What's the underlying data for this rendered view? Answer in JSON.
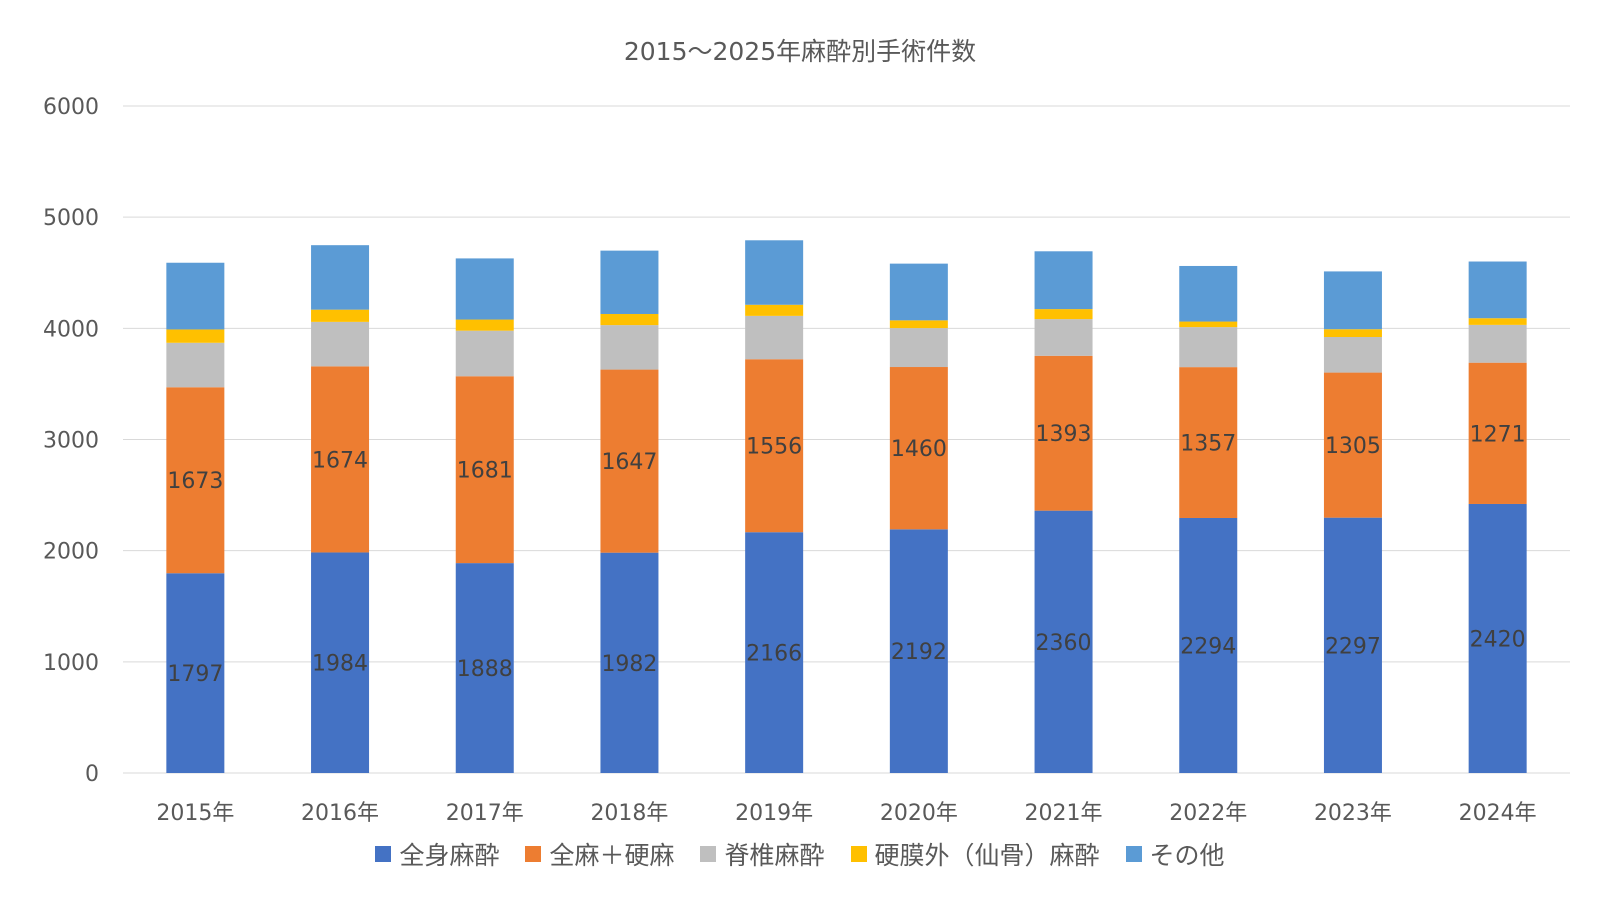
{
  "chart_data": {
    "type": "bar",
    "stacked": true,
    "title": "2015～2025年麻酔別手術件数",
    "xlabel": "",
    "ylabel": "",
    "ylim": [
      0,
      6000
    ],
    "yticks": [
      0,
      1000,
      2000,
      3000,
      4000,
      5000,
      6000
    ],
    "grid": true,
    "legend_position": "bottom",
    "categories": [
      "2015年",
      "2016年",
      "2017年",
      "2018年",
      "2019年",
      "2020年",
      "2021年",
      "2022年",
      "2023年",
      "2024年"
    ],
    "series": [
      {
        "name": "全身麻酔",
        "color": "#4472C4",
        "show_labels": true,
        "values": [
          1797,
          1984,
          1888,
          1982,
          2166,
          2192,
          2360,
          2294,
          2297,
          2420
        ]
      },
      {
        "name": "全麻＋硬麻",
        "color": "#ED7D31",
        "show_labels": true,
        "values": [
          1673,
          1674,
          1681,
          1647,
          1556,
          1460,
          1393,
          1357,
          1305,
          1271
        ]
      },
      {
        "name": "脊椎麻酔",
        "color": "#BFBFBF",
        "show_labels": false,
        "values": [
          400,
          400,
          410,
          400,
          390,
          350,
          330,
          360,
          320,
          340
        ]
      },
      {
        "name": "硬膜外（仙骨）麻酔",
        "color": "#FFC000",
        "show_labels": false,
        "values": [
          120,
          110,
          100,
          100,
          100,
          70,
          90,
          50,
          70,
          60
        ]
      },
      {
        "name": "その他",
        "color": "#5B9BD5",
        "show_labels": false,
        "values": [
          600,
          580,
          550,
          570,
          580,
          510,
          520,
          500,
          520,
          510
        ]
      }
    ]
  }
}
